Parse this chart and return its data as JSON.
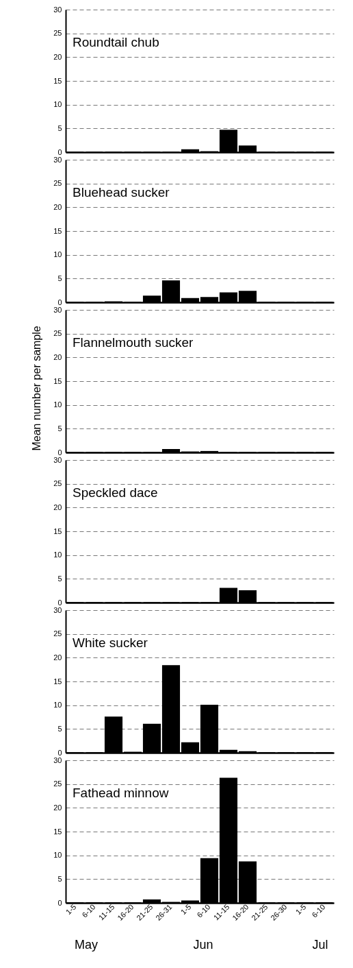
{
  "chart_data": [
    {
      "type": "bar",
      "title": "Roundtail chub",
      "series": [
        {
          "color": "#000000",
          "values": [
            0,
            0,
            0,
            0,
            0,
            0,
            0.5,
            0.1,
            4.6,
            1.3,
            0,
            0,
            0,
            0
          ]
        }
      ],
      "ylim": [
        0,
        30
      ],
      "yticks": [
        0,
        5,
        10,
        15,
        20,
        25,
        30
      ],
      "grid": "y",
      "line_style": "dashed",
      "tick_labels": "y"
    },
    {
      "type": "bar",
      "title": "Bluehead sucker",
      "series": [
        {
          "color": "#000000",
          "values": [
            0,
            0,
            0.1,
            0,
            1.3,
            4.5,
            0.8,
            1.0,
            2.0,
            2.3,
            0,
            0,
            0,
            0
          ]
        }
      ],
      "ylim": [
        0,
        30
      ],
      "yticks": [
        0,
        5,
        10,
        15,
        20,
        25,
        30
      ],
      "grid": "y",
      "tick_labels": "y"
    },
    {
      "type": "bar",
      "title": "Flannelmouth sucker",
      "ylabel": "Mean number per sample",
      "series": [
        {
          "color": "#000000",
          "values": [
            0,
            0,
            0,
            0,
            0,
            0.6,
            0.1,
            0.2,
            0,
            0,
            0,
            0,
            0,
            0
          ]
        }
      ],
      "ylim": [
        0,
        30
      ],
      "yticks": [
        0,
        5,
        10,
        15,
        20,
        25,
        30
      ],
      "grid": "y",
      "tick_labels": "y"
    },
    {
      "type": "bar",
      "title": "Speckled dace",
      "series": [
        {
          "color": "#000000",
          "values": [
            0,
            0,
            0,
            0,
            0,
            0,
            0,
            0,
            3.0,
            2.5,
            0,
            0,
            0,
            0
          ]
        }
      ],
      "ylim": [
        0,
        30
      ],
      "yticks": [
        0,
        5,
        10,
        15,
        20,
        25,
        30
      ],
      "grid": "y",
      "tick_labels": "y"
    },
    {
      "type": "bar",
      "title": "White sucker",
      "series": [
        {
          "color": "#000000",
          "values": [
            0,
            0,
            7.5,
            0.1,
            6.0,
            18.3,
            2.1,
            10.0,
            0.5,
            0.2,
            0,
            0,
            0,
            0
          ]
        }
      ],
      "ylim": [
        0,
        30
      ],
      "yticks": [
        0,
        5,
        10,
        15,
        20,
        25,
        30
      ],
      "grid": "y",
      "tick_labels": "y"
    },
    {
      "type": "bar",
      "title": "Fathead minnow",
      "categories": [
        "1-5",
        "6-10",
        "11-15",
        "16-20",
        "21-25",
        "26-31",
        "1-5",
        "6-10",
        "11-15",
        "16-20",
        "21-25",
        "26-30",
        "1-5",
        "6-10"
      ],
      "series": [
        {
          "color": "#000000",
          "values": [
            0,
            0,
            0,
            0,
            0.6,
            0.1,
            0.4,
            9.3,
            26.2,
            8.6,
            0,
            0,
            0,
            0
          ]
        }
      ],
      "ylim": [
        0,
        30
      ],
      "yticks": [
        0,
        5,
        10,
        15,
        20,
        25,
        30
      ],
      "grid": "y",
      "annotations": [
        "May",
        "Jun",
        "Jul"
      ]
    }
  ]
}
